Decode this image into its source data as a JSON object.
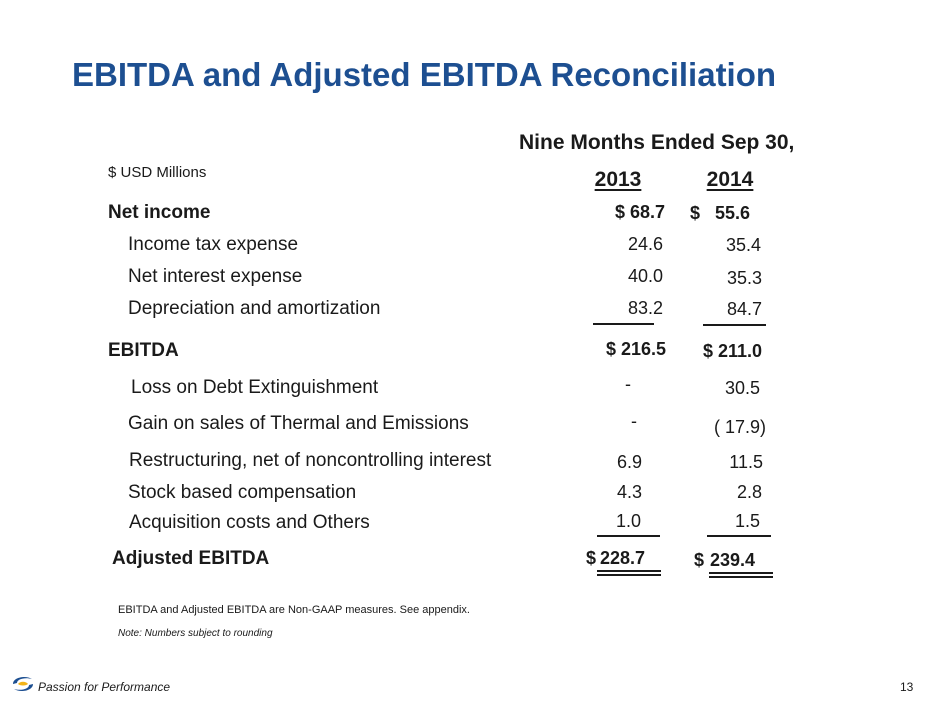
{
  "title": "EBITDA and Adjusted EBITDA Reconciliation",
  "header": {
    "period": "Nine Months Ended Sep 30,",
    "units": "$ USD Millions",
    "years": [
      "2013",
      "2014"
    ]
  },
  "rows": {
    "net_income": {
      "label": "Net income",
      "v2013": "$ 68.7",
      "v2014": "$   55.6"
    },
    "income_tax": {
      "label": "Income tax expense",
      "v2013": "24.6",
      "v2014": "35.4"
    },
    "net_interest": {
      "label": "Net interest expense",
      "v2013": "40.0",
      "v2014": "35.3"
    },
    "dep_amort": {
      "label": "Depreciation and amortization",
      "v2013": "83.2",
      "v2014": "84.7"
    },
    "ebitda": {
      "label": "EBITDA",
      "v2013": "$ 216.5",
      "v2014": "$ 211.0"
    },
    "loss_debt": {
      "label": "Loss on Debt Extinguishment",
      "v2013": "-",
      "v2014": "30.5"
    },
    "gain_sales": {
      "label": "Gain on sales of Thermal and Emissions",
      "v2013": "-",
      "v2014": "( 17.9)"
    },
    "restructuring": {
      "label": "Restructuring, net of noncontrolling interest",
      "v2013": "6.9",
      "v2014": "11.5"
    },
    "stock_comp": {
      "label": "Stock based compensation",
      "v2013": "4.3",
      "v2014": "2.8"
    },
    "acquisition": {
      "label": "Acquisition costs and Others",
      "v2013": "1.0",
      "v2014": "1.5"
    },
    "adj_ebitda": {
      "label": "Adjusted EBITDA",
      "v2013_prefix": "$",
      "v2013": "228.7",
      "v2014_prefix": "$",
      "v2014": "239.4"
    }
  },
  "footnotes": {
    "non_gaap": "EBITDA and Adjusted EBITDA are Non-GAAP measures. See appendix.",
    "rounding": "Note: Numbers subject to rounding"
  },
  "footer": {
    "slogan": "Passion for Performance",
    "page_number": "13",
    "logo_icon": "company-logo-icon"
  },
  "colors": {
    "title": "#1d4f91",
    "logo_blue": "#1d4f91",
    "logo_yellow": "#f2b318"
  }
}
